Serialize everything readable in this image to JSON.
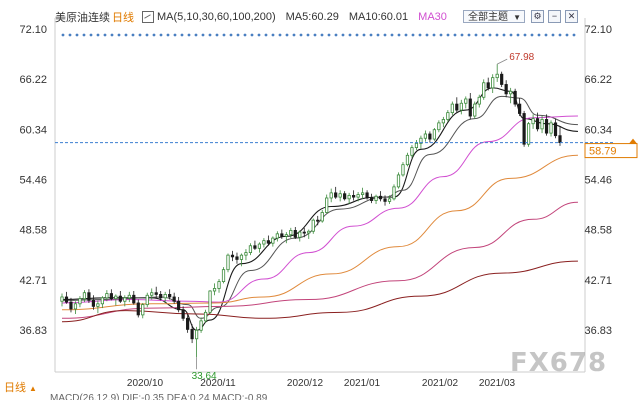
{
  "header": {
    "symbol": "美原油连续",
    "period": "日线",
    "ma_config": "MA(5,10,30,60,100,200)",
    "ma5": "MA5:60.29",
    "ma10": "MA10:60.01",
    "ma30": "MA30",
    "dropdown_label": "全部主题",
    "dropdown_icon": "chevron-down-icon",
    "toolbar_icons": [
      "settings-icon",
      "minus-icon",
      "close-icon"
    ]
  },
  "footer": {
    "period_label": "日线",
    "period_icon": "triangle-up-icon",
    "macd_text": "MACD(26,12,9) DIF:-0.35 DEA:0.24 MACD:-0.89"
  },
  "watermark": "FX678",
  "colors": {
    "up": "#3a8a3a",
    "down": "#1a1a1a",
    "ma5": "#1a1a1a",
    "ma10": "#555555",
    "ma30": "#d14fd1",
    "ma60": "#e08a3c",
    "ma100": "#c2447a",
    "ma200": "#8a2020",
    "current_price_line": "#3d7fd1",
    "label_low": "#2c9a2c",
    "label_high": "#c0392b",
    "current_price_box": "#e07b00"
  },
  "chart_data": {
    "type": "candlestick",
    "title": "美原油连续",
    "y_ticks_left": [
      "72.10",
      "66.22",
      "60.34",
      "54.46",
      "48.58",
      "42.71",
      "36.83"
    ],
    "y_ticks_right": [
      "72.10",
      "66.22",
      "60.34",
      "54.46",
      "48.58",
      "42.71",
      "36.83"
    ],
    "ylim": [
      36.83,
      72.1
    ],
    "x_labels": [
      "2020/10",
      "2020/11",
      "2020/12",
      "2021/01",
      "2021/02",
      "2021/03"
    ],
    "annotations": {
      "high": "67.98",
      "low": "33.64"
    },
    "current_price_label": "58.79",
    "current_price": 58.79,
    "candles": [
      [
        40.2,
        41.1,
        39.6,
        40.7
      ],
      [
        40.7,
        41.3,
        39.9,
        40.1
      ],
      [
        40.1,
        40.6,
        38.9,
        39.3
      ],
      [
        39.3,
        40.2,
        38.7,
        39.9
      ],
      [
        39.9,
        40.8,
        39.5,
        40.5
      ],
      [
        40.5,
        41.5,
        40.1,
        41.2
      ],
      [
        41.2,
        41.6,
        40.0,
        40.3
      ],
      [
        40.3,
        40.9,
        39.2,
        39.6
      ],
      [
        39.6,
        40.3,
        38.8,
        39.9
      ],
      [
        39.9,
        40.8,
        39.4,
        40.6
      ],
      [
        40.6,
        41.5,
        40.2,
        41.1
      ],
      [
        41.1,
        41.6,
        40.3,
        40.5
      ],
      [
        40.5,
        41.0,
        39.7,
        40.8
      ],
      [
        40.8,
        41.4,
        40.0,
        40.2
      ],
      [
        40.2,
        40.9,
        39.6,
        40.6
      ],
      [
        40.6,
        41.3,
        40.1,
        40.9
      ],
      [
        40.9,
        41.4,
        39.8,
        40.0
      ],
      [
        40.0,
        40.4,
        38.3,
        38.6
      ],
      [
        38.6,
        40.0,
        38.2,
        39.8
      ],
      [
        39.8,
        41.2,
        39.5,
        40.9
      ],
      [
        40.9,
        41.7,
        40.4,
        41.2
      ],
      [
        41.2,
        41.9,
        40.6,
        41.0
      ],
      [
        41.0,
        41.4,
        40.3,
        40.6
      ],
      [
        40.6,
        41.3,
        40.0,
        41.0
      ],
      [
        41.0,
        41.6,
        40.4,
        40.7
      ],
      [
        40.7,
        41.2,
        39.9,
        40.2
      ],
      [
        40.2,
        40.7,
        38.9,
        39.2
      ],
      [
        39.2,
        39.6,
        37.9,
        38.2
      ],
      [
        38.2,
        38.7,
        36.5,
        36.9
      ],
      [
        36.9,
        37.5,
        35.3,
        35.8
      ],
      [
        35.8,
        37.2,
        33.64,
        36.8
      ],
      [
        36.8,
        38.3,
        36.5,
        37.9
      ],
      [
        37.9,
        39.2,
        37.7,
        38.9
      ],
      [
        38.9,
        41.5,
        38.7,
        41.4
      ],
      [
        41.4,
        42.3,
        40.9,
        41.7
      ],
      [
        41.7,
        42.8,
        41.2,
        42.5
      ],
      [
        42.5,
        44.2,
        42.3,
        43.9
      ],
      [
        43.9,
        45.8,
        43.6,
        45.6
      ],
      [
        45.6,
        46.1,
        44.9,
        45.4
      ],
      [
        45.4,
        45.9,
        44.6,
        45.1
      ],
      [
        45.1,
        45.8,
        44.3,
        45.6
      ],
      [
        45.6,
        46.3,
        45.0,
        45.9
      ],
      [
        45.9,
        47.0,
        45.6,
        46.7
      ],
      [
        46.7,
        47.3,
        46.2,
        46.4
      ],
      [
        46.4,
        47.1,
        45.9,
        46.9
      ],
      [
        46.9,
        47.6,
        46.5,
        47.3
      ],
      [
        47.3,
        47.9,
        46.7,
        47.0
      ],
      [
        47.0,
        47.8,
        46.6,
        47.6
      ],
      [
        47.6,
        48.4,
        47.2,
        48.1
      ],
      [
        48.1,
        48.6,
        47.5,
        47.8
      ],
      [
        47.8,
        48.3,
        47.0,
        48.0
      ],
      [
        48.0,
        48.8,
        47.6,
        48.5
      ],
      [
        48.5,
        48.9,
        47.5,
        47.7
      ],
      [
        47.7,
        48.5,
        47.2,
        48.3
      ],
      [
        48.3,
        48.8,
        47.7,
        48.2
      ],
      [
        48.2,
        48.6,
        47.5,
        48.4
      ],
      [
        48.4,
        49.9,
        48.1,
        49.7
      ],
      [
        49.7,
        50.2,
        49.1,
        49.6
      ],
      [
        49.6,
        50.9,
        49.4,
        50.6
      ],
      [
        50.6,
        52.7,
        50.5,
        52.3
      ],
      [
        52.3,
        53.4,
        51.8,
        52.9
      ],
      [
        52.9,
        53.6,
        52.2,
        52.4
      ],
      [
        52.4,
        53.2,
        51.9,
        52.8
      ],
      [
        52.8,
        53.1,
        52.0,
        52.2
      ],
      [
        52.2,
        52.9,
        51.6,
        52.6
      ],
      [
        52.6,
        53.2,
        52.0,
        52.4
      ],
      [
        52.4,
        53.0,
        51.9,
        52.7
      ],
      [
        52.7,
        53.5,
        52.2,
        52.9
      ],
      [
        52.9,
        53.2,
        52.1,
        52.3
      ],
      [
        52.3,
        52.8,
        51.7,
        52.0
      ],
      [
        52.0,
        52.7,
        51.6,
        52.5
      ],
      [
        52.5,
        53.1,
        51.9,
        52.2
      ],
      [
        52.2,
        52.6,
        51.4,
        51.9
      ],
      [
        51.9,
        52.6,
        51.6,
        52.2
      ],
      [
        52.2,
        53.9,
        52.0,
        53.6
      ],
      [
        53.6,
        55.3,
        53.4,
        55.0
      ],
      [
        55.0,
        56.5,
        54.8,
        56.2
      ],
      [
        56.2,
        57.6,
        56.0,
        57.3
      ],
      [
        57.3,
        58.5,
        57.0,
        58.2
      ],
      [
        58.2,
        59.1,
        57.9,
        58.7
      ],
      [
        58.7,
        59.6,
        58.1,
        59.3
      ],
      [
        59.3,
        60.2,
        58.9,
        59.8
      ],
      [
        59.8,
        60.1,
        58.8,
        59.2
      ],
      [
        59.2,
        60.5,
        59.0,
        60.3
      ],
      [
        60.3,
        61.4,
        60.0,
        61.1
      ],
      [
        61.1,
        61.8,
        60.6,
        61.5
      ],
      [
        61.5,
        62.6,
        61.2,
        62.3
      ],
      [
        62.3,
        63.6,
        62.0,
        63.3
      ],
      [
        63.3,
        64.1,
        62.3,
        62.6
      ],
      [
        62.6,
        63.8,
        62.1,
        63.4
      ],
      [
        63.4,
        64.2,
        62.8,
        63.9
      ],
      [
        63.9,
        64.6,
        61.5,
        61.9
      ],
      [
        61.9,
        63.6,
        61.6,
        63.3
      ],
      [
        63.3,
        64.4,
        62.9,
        64.1
      ],
      [
        64.1,
        66.2,
        63.8,
        65.8
      ],
      [
        65.8,
        66.4,
        64.9,
        65.2
      ],
      [
        65.2,
        66.8,
        64.6,
        66.4
      ],
      [
        66.4,
        67.98,
        65.9,
        66.8
      ],
      [
        66.8,
        67.1,
        65.3,
        65.6
      ],
      [
        65.6,
        66.1,
        64.1,
        64.5
      ],
      [
        64.5,
        65.2,
        63.4,
        64.8
      ],
      [
        64.8,
        65.1,
        63.0,
        63.3
      ],
      [
        63.3,
        64.0,
        61.9,
        62.2
      ],
      [
        62.2,
        62.5,
        58.3,
        58.6
      ],
      [
        58.6,
        61.2,
        58.3,
        61.0
      ],
      [
        61.0,
        62.1,
        60.4,
        61.6
      ],
      [
        61.6,
        62.3,
        60.1,
        60.4
      ],
      [
        60.4,
        61.9,
        59.9,
        61.5
      ],
      [
        61.5,
        62.1,
        59.6,
        59.9
      ],
      [
        59.9,
        61.4,
        59.5,
        61.1
      ],
      [
        61.1,
        61.6,
        59.3,
        59.6
      ],
      [
        59.6,
        60.6,
        58.4,
        58.79
      ]
    ],
    "moving_averages": [
      {
        "name": "MA5",
        "values": [
          [
            0,
            40.4
          ],
          [
            10,
            40.6
          ],
          [
            20,
            40.6
          ],
          [
            27,
            39.2
          ],
          [
            30,
            36.8
          ],
          [
            33,
            38.0
          ],
          [
            40,
            44.6
          ],
          [
            50,
            47.8
          ],
          [
            60,
            51.3
          ],
          [
            70,
            52.4
          ],
          [
            74,
            52.4
          ],
          [
            80,
            58.0
          ],
          [
            90,
            62.6
          ],
          [
            96,
            65.2
          ],
          [
            100,
            64.8
          ],
          [
            103,
            61.6
          ],
          [
            108,
            61.0
          ],
          [
            115,
            60.1
          ]
        ]
      },
      {
        "name": "MA10",
        "values": [
          [
            0,
            40.3
          ],
          [
            10,
            40.4
          ],
          [
            22,
            40.7
          ],
          [
            28,
            39.8
          ],
          [
            31,
            38.2
          ],
          [
            35,
            39.5
          ],
          [
            42,
            43.8
          ],
          [
            52,
            47.6
          ],
          [
            62,
            51.0
          ],
          [
            72,
            52.4
          ],
          [
            76,
            53.2
          ],
          [
            82,
            57.4
          ],
          [
            92,
            61.6
          ],
          [
            98,
            64.2
          ],
          [
            102,
            64.0
          ],
          [
            106,
            62.0
          ],
          [
            115,
            60.9
          ]
        ]
      },
      {
        "name": "MA30",
        "values": [
          [
            0,
            40.0
          ],
          [
            15,
            40.4
          ],
          [
            28,
            40.2
          ],
          [
            35,
            40.1
          ],
          [
            45,
            42.8
          ],
          [
            55,
            45.9
          ],
          [
            65,
            49.0
          ],
          [
            75,
            51.1
          ],
          [
            85,
            54.8
          ],
          [
            95,
            58.9
          ],
          [
            105,
            61.7
          ],
          [
            115,
            61.9
          ]
        ]
      },
      {
        "name": "MA60",
        "values": [
          [
            0,
            39.2
          ],
          [
            20,
            39.9
          ],
          [
            34,
            40.0
          ],
          [
            45,
            40.7
          ],
          [
            60,
            43.4
          ],
          [
            75,
            46.6
          ],
          [
            88,
            50.8
          ],
          [
            100,
            54.6
          ],
          [
            115,
            57.3
          ]
        ]
      },
      {
        "name": "MA100",
        "values": [
          [
            0,
            38.2
          ],
          [
            20,
            39.4
          ],
          [
            36,
            39.6
          ],
          [
            55,
            40.4
          ],
          [
            75,
            42.6
          ],
          [
            92,
            46.5
          ],
          [
            105,
            49.8
          ],
          [
            115,
            51.8
          ]
        ]
      },
      {
        "name": "MA200",
        "values": [
          [
            0,
            37.8
          ],
          [
            14,
            39.1
          ],
          [
            30,
            38.7
          ],
          [
            45,
            38.2
          ],
          [
            62,
            38.9
          ],
          [
            80,
            40.8
          ],
          [
            98,
            43.5
          ],
          [
            115,
            44.9
          ]
        ]
      }
    ]
  }
}
